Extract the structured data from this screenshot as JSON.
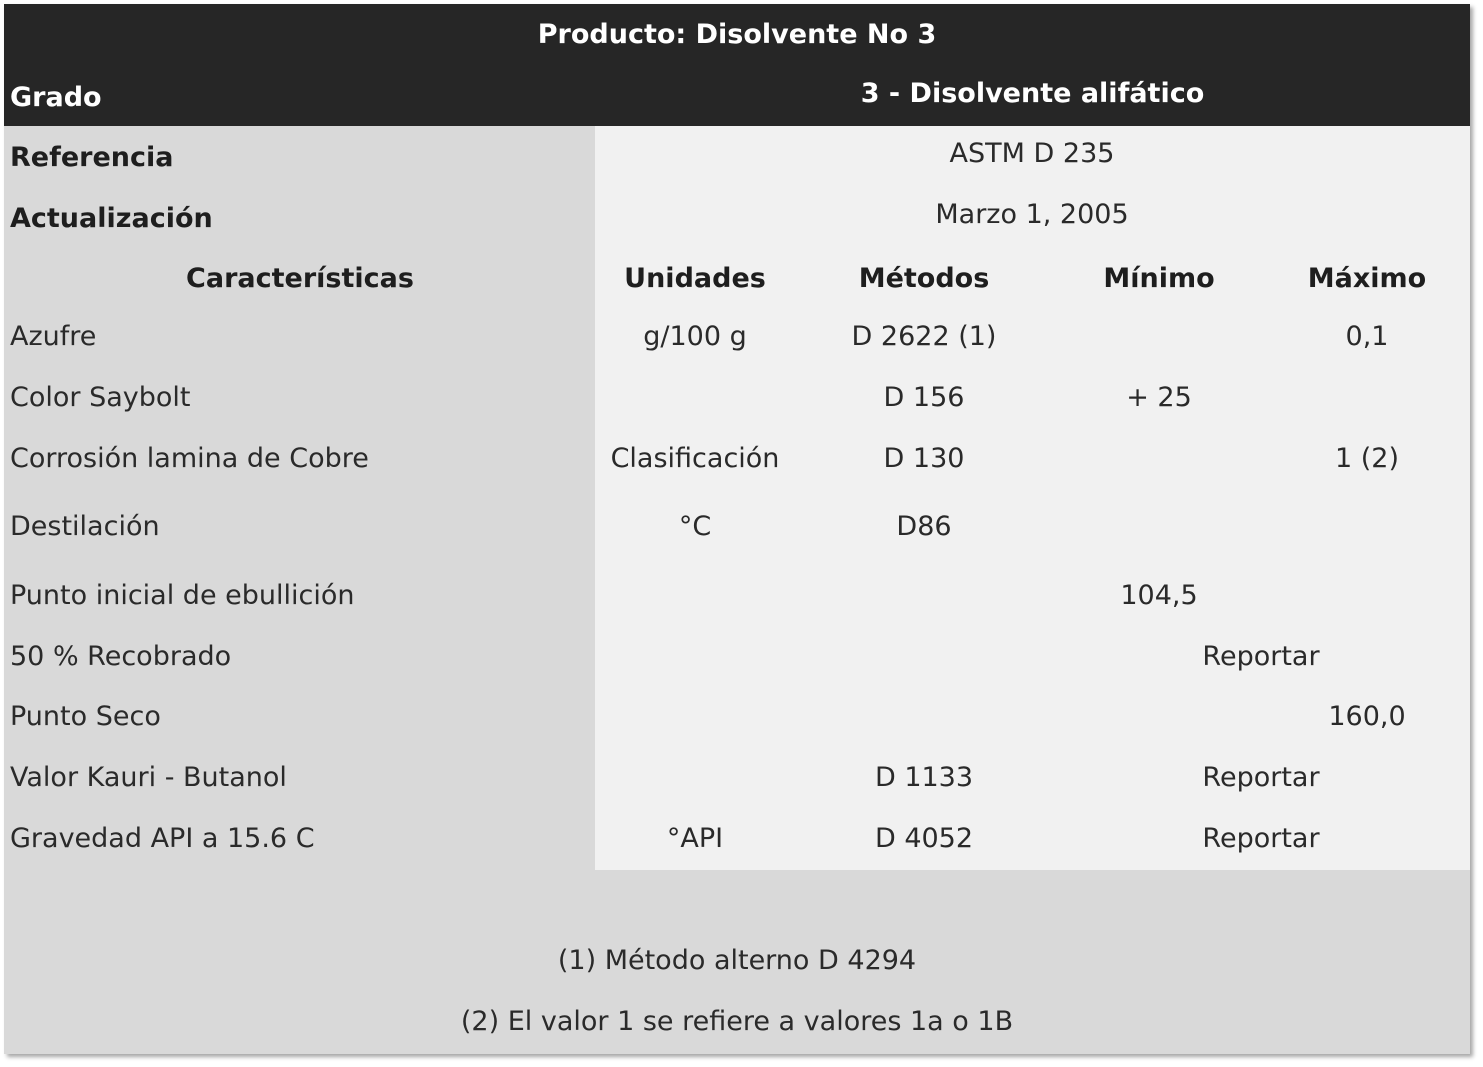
{
  "title": "Producto: Disolvente No 3",
  "grade": {
    "label": "Grado",
    "value": "3 - Disolvente alifático"
  },
  "reference": {
    "label": "Referencia",
    "value": "ASTM D 235"
  },
  "update": {
    "label": "Actualización",
    "value": "Marzo 1, 2005"
  },
  "columns": {
    "characteristics": "Características",
    "units": "Unidades",
    "methods": "Métodos",
    "minimum": "Mínimo",
    "maximum": "Máximo"
  },
  "rows": [
    {
      "name": "Azufre",
      "units": "g/100 g",
      "method": "D 2622 (1)",
      "min": "",
      "max": "0,1"
    },
    {
      "name": "Color Saybolt",
      "units": "",
      "method": "D 156",
      "min": "+ 25",
      "max": ""
    },
    {
      "name": "Corrosión lamina de Cobre",
      "units": "Clasificación",
      "method": "D 130",
      "min": "",
      "max": "1 (2)"
    },
    {
      "name": "Destilación",
      "units": "°C",
      "method": "D86",
      "min": "",
      "max": ""
    },
    {
      "name": "Punto inicial de ebullición",
      "units": "",
      "method": "",
      "min": "104,5",
      "max": ""
    },
    {
      "name": "50 % Recobrado",
      "units": "",
      "method": "",
      "min": "",
      "max": "",
      "span": "Reportar"
    },
    {
      "name": "Punto Seco",
      "units": "",
      "method": "",
      "min": "",
      "max": "160,0"
    },
    {
      "name": "Valor Kauri - Butanol",
      "units": "",
      "method": "D 1133",
      "min": "",
      "max": "",
      "span": "Reportar"
    },
    {
      "name": "Gravedad API a 15.6 C",
      "units": "°API",
      "method": "D 4052",
      "min": "",
      "max": "",
      "span": "Reportar"
    }
  ],
  "notes": [
    "(1) Método alterno D 4294",
    "(2) El valor 1 se refiere a valores 1a o 1B"
  ]
}
